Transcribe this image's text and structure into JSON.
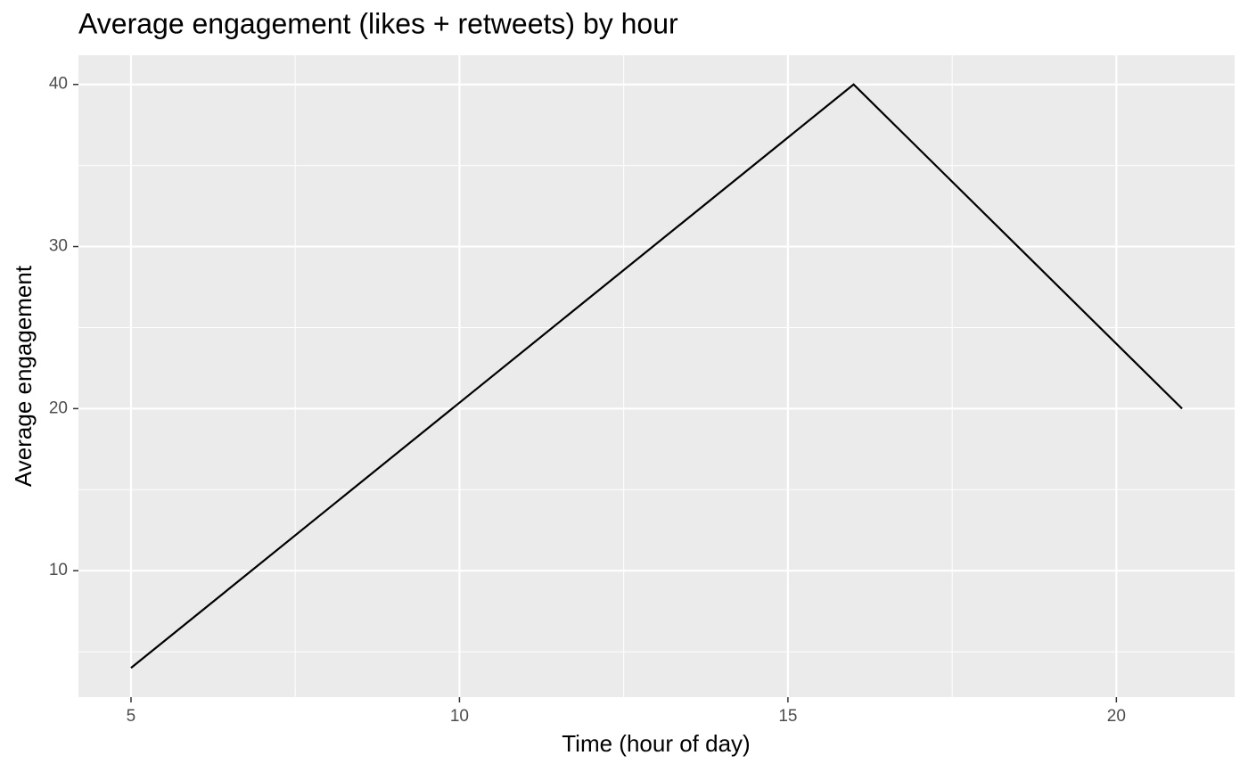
{
  "chart_data": {
    "type": "line",
    "title": "Average engagement (likes + retweets) by hour",
    "x_label": "Time (hour of day)",
    "y_label": "Average engagement",
    "x": [
      5,
      16,
      21
    ],
    "values": [
      4,
      40,
      20
    ],
    "color": "#000000",
    "xlim": [
      4.2,
      21.8
    ],
    "ylim": [
      2.2,
      41.8
    ],
    "xticks": [
      5,
      10,
      15,
      20
    ],
    "yticks": [
      10,
      20,
      30,
      40
    ],
    "x_minor_grid": [
      7.5,
      12.5,
      17.5
    ],
    "y_minor_grid": [
      5,
      15,
      25,
      35
    ],
    "grid": true
  }
}
